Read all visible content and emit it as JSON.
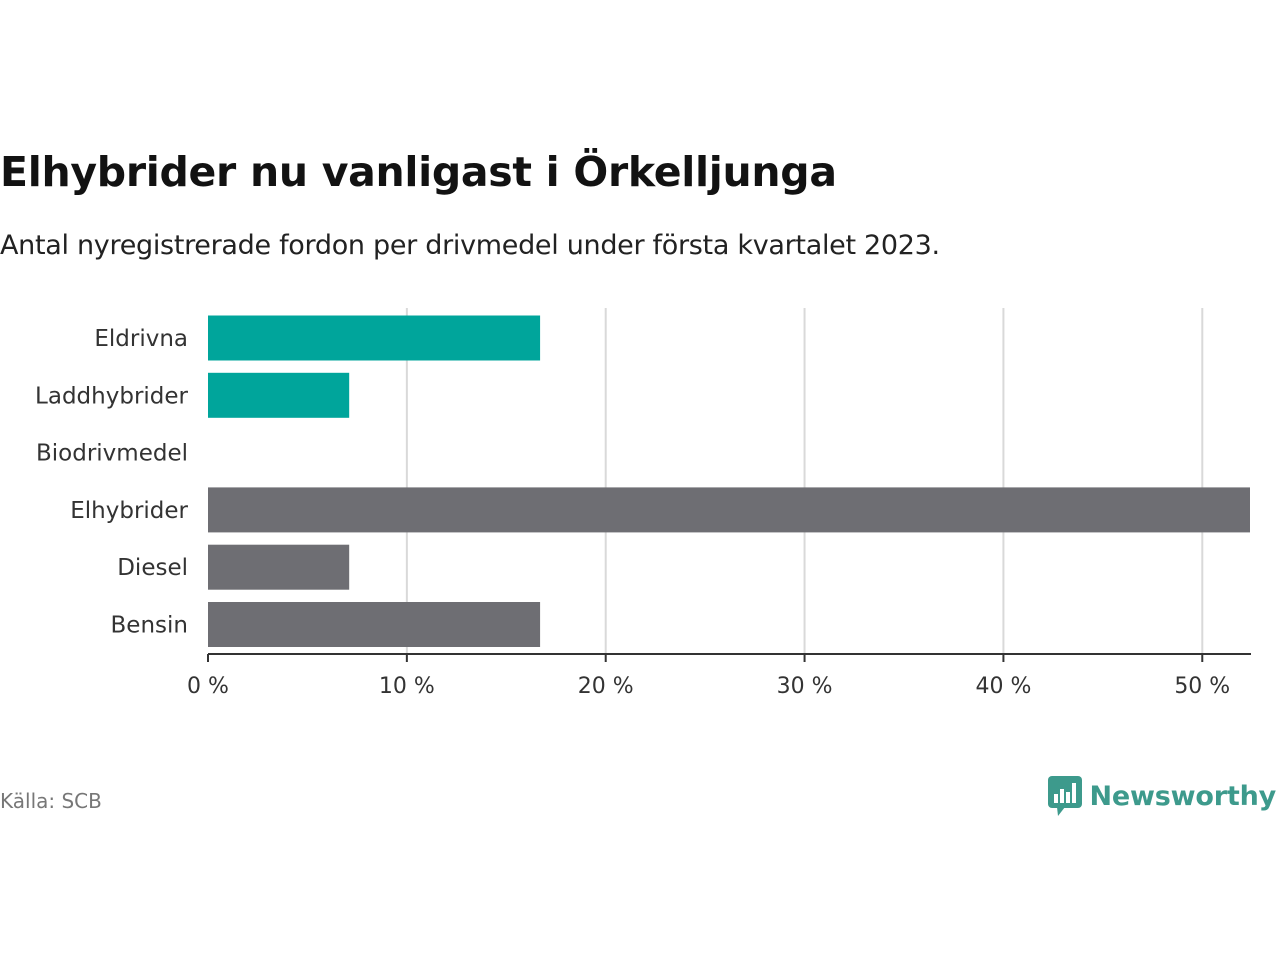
{
  "header": {
    "title": "Elhybrider nu vanligast i Örkelljunga",
    "subtitle": "Antal nyregistrerade fordon per drivmedel under första kvartalet 2023."
  },
  "footer": {
    "source": "Källa: SCB",
    "brand": "Newsworthy",
    "brand_icon": "bar-chart-speech-icon"
  },
  "colors": {
    "highlight": "#00a59b",
    "default": "#6e6e73",
    "grid": "#d9d9d9",
    "axis": "#333333",
    "brand": "#3d9a8c"
  },
  "chart_data": {
    "type": "bar",
    "orientation": "horizontal",
    "categories": [
      "Eldrivna",
      "Laddhybrider",
      "Biodrivmedel",
      "Elhybrider",
      "Diesel",
      "Bensin"
    ],
    "values": [
      16.7,
      7.1,
      0,
      52.4,
      7.1,
      16.7
    ],
    "highlighted": [
      true,
      true,
      false,
      false,
      false,
      false
    ],
    "xlim": [
      0,
      52.4
    ],
    "xticks": [
      0,
      10,
      20,
      30,
      40,
      50
    ],
    "tick_format": "{v} %",
    "grid": true
  }
}
